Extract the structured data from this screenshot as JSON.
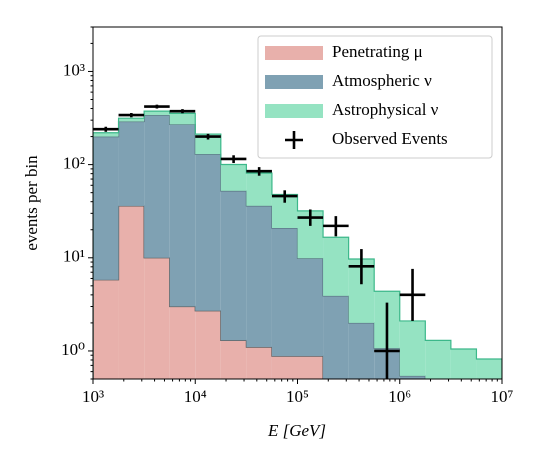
{
  "chart_data": {
    "type": "stacked_step_histogram",
    "xlabel": "E [GeV]",
    "ylabel": "events per bin",
    "log_x": true,
    "log_y": true,
    "xlim": [
      1000,
      10000000
    ],
    "ylim": [
      0.5,
      3000
    ],
    "xticks": [
      {
        "value": 1000,
        "label": "10³"
      },
      {
        "value": 10000,
        "label": "10⁴"
      },
      {
        "value": 100000,
        "label": "10⁵"
      },
      {
        "value": 1000000,
        "label": "10⁶"
      },
      {
        "value": 10000000,
        "label": "10⁷"
      }
    ],
    "yticks": [
      {
        "value": 1,
        "label": "10⁰"
      },
      {
        "value": 10,
        "label": "10¹"
      },
      {
        "value": 100,
        "label": "10²"
      },
      {
        "value": 1000,
        "label": "10³"
      }
    ],
    "bins": [
      1000,
      1778,
      3162,
      5623,
      10000,
      17783,
      31623,
      56234,
      100000,
      177828,
      316228,
      562341,
      1000000,
      1778279,
      3162278,
      5623413,
      10000000
    ],
    "legend": "upper right",
    "series": [
      {
        "name": "Penetrating μ",
        "color": "#e8b0ab",
        "edge": "#5a5a5a",
        "values": [
          5.8,
          36,
          10,
          3.0,
          2.7,
          1.3,
          1.1,
          0.88,
          0.88,
          0,
          0,
          0,
          0,
          0,
          0,
          0
        ]
      },
      {
        "name": "Atmospheric ν",
        "color": "#7fa1b3",
        "edge": "#55707e",
        "values": [
          194,
          254,
          330,
          267,
          127,
          51,
          35,
          20,
          9,
          3.9,
          2.0,
          1.07,
          0.54,
          0,
          0,
          0
        ]
      },
      {
        "name": "Astrophysical ν",
        "color": "#95e3c2",
        "edge": "#3cb88a",
        "values": [
          20,
          25,
          35,
          85,
          83,
          48,
          45,
          27,
          22,
          12.7,
          7.7,
          3.3,
          1.56,
          1.3,
          1.05,
          0.82
        ]
      }
    ],
    "observed": {
      "name": "Observed Events",
      "color": "#000000",
      "values": [
        240,
        340,
        420,
        375,
        200,
        115,
        85,
        46,
        27,
        22,
        8.1,
        1.0,
        4.0,
        null,
        null,
        null
      ],
      "err_low": [
        15,
        18,
        20,
        19,
        14,
        11,
        9,
        7,
        5,
        5,
        2.9,
        1.0,
        1.9,
        null,
        null,
        null
      ],
      "err_high": [
        15,
        18,
        20,
        19,
        14,
        11,
        9,
        7,
        6,
        6,
        4.3,
        2.3,
        3.6,
        null,
        null,
        null
      ]
    }
  }
}
